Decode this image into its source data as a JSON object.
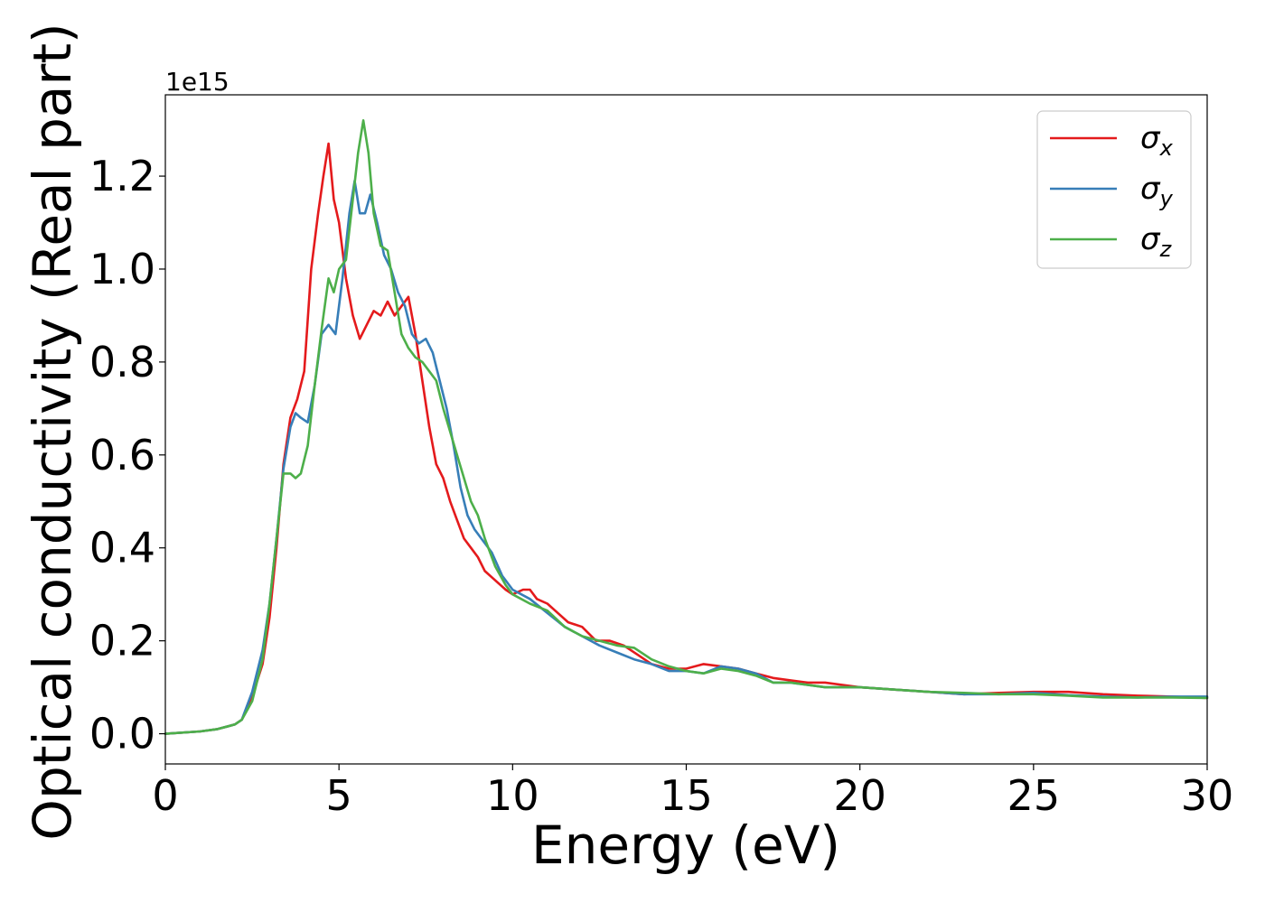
{
  "chart_data": {
    "type": "line",
    "xlabel": "Energy (eV)",
    "ylabel": "Optical conductivity (Real part)",
    "y_offset_label": "1e15",
    "xlim": [
      0,
      30
    ],
    "ylim": [
      -0.065,
      1.375
    ],
    "x_ticks": [
      0,
      5,
      10,
      15,
      20,
      25,
      30
    ],
    "x_tick_labels": [
      "0",
      "5",
      "10",
      "15",
      "20",
      "25",
      "30"
    ],
    "y_ticks": [
      0.0,
      0.2,
      0.4,
      0.6,
      0.8,
      1.0,
      1.2
    ],
    "y_tick_labels": [
      "0.0",
      "0.2",
      "0.4",
      "0.6",
      "0.8",
      "1.0",
      "1.2"
    ],
    "grid": false,
    "legend_position": "top-right",
    "series": [
      {
        "name": "σx",
        "legend_base": "σ",
        "legend_sub": "x",
        "color": "#e41a1c",
        "x": [
          0,
          1,
          1.5,
          2.0,
          2.2,
          2.5,
          2.8,
          3.0,
          3.2,
          3.4,
          3.6,
          3.8,
          4.0,
          4.2,
          4.4,
          4.55,
          4.7,
          4.85,
          5.0,
          5.2,
          5.4,
          5.6,
          5.8,
          6.0,
          6.2,
          6.4,
          6.6,
          6.8,
          7.0,
          7.2,
          7.4,
          7.6,
          7.8,
          8.0,
          8.2,
          8.4,
          8.6,
          8.8,
          9.0,
          9.2,
          9.5,
          9.8,
          10.0,
          10.3,
          10.5,
          10.7,
          11.0,
          11.3,
          11.6,
          12.0,
          12.4,
          12.8,
          13.2,
          13.6,
          14.0,
          14.5,
          15.0,
          15.5,
          16.0,
          16.5,
          17.0,
          17.5,
          18.0,
          18.5,
          19.0,
          19.5,
          20.0,
          21.0,
          22.0,
          23.0,
          24.0,
          25.0,
          26.0,
          27.0,
          28.0,
          29.0,
          30.0
        ],
        "y": [
          0,
          0.005,
          0.01,
          0.02,
          0.03,
          0.08,
          0.15,
          0.25,
          0.4,
          0.58,
          0.68,
          0.72,
          0.78,
          1.0,
          1.12,
          1.2,
          1.27,
          1.15,
          1.1,
          0.98,
          0.9,
          0.85,
          0.88,
          0.91,
          0.9,
          0.93,
          0.9,
          0.92,
          0.94,
          0.86,
          0.76,
          0.66,
          0.58,
          0.55,
          0.5,
          0.46,
          0.42,
          0.4,
          0.38,
          0.35,
          0.33,
          0.31,
          0.3,
          0.31,
          0.31,
          0.29,
          0.28,
          0.26,
          0.24,
          0.23,
          0.2,
          0.2,
          0.19,
          0.17,
          0.15,
          0.14,
          0.14,
          0.15,
          0.145,
          0.14,
          0.13,
          0.12,
          0.115,
          0.11,
          0.11,
          0.105,
          0.1,
          0.095,
          0.09,
          0.085,
          0.088,
          0.09,
          0.09,
          0.085,
          0.082,
          0.08,
          0.077
        ]
      },
      {
        "name": "σy",
        "legend_base": "σ",
        "legend_sub": "y",
        "color": "#377eb8",
        "x": [
          0,
          1,
          1.5,
          2.0,
          2.2,
          2.5,
          2.8,
          3.0,
          3.2,
          3.4,
          3.6,
          3.75,
          3.9,
          4.1,
          4.3,
          4.5,
          4.7,
          4.9,
          5.1,
          5.3,
          5.45,
          5.6,
          5.75,
          5.9,
          6.1,
          6.3,
          6.5,
          6.7,
          6.9,
          7.1,
          7.3,
          7.5,
          7.7,
          7.9,
          8.1,
          8.3,
          8.5,
          8.7,
          8.9,
          9.1,
          9.4,
          9.7,
          10.0,
          10.5,
          11.0,
          11.5,
          12.0,
          12.5,
          13.0,
          13.5,
          14.0,
          14.5,
          15.0,
          15.5,
          16.0,
          16.5,
          17.0,
          17.5,
          18.0,
          18.5,
          19.0,
          20.0,
          21.0,
          22.0,
          23.0,
          24.0,
          25.0,
          26.0,
          27.0,
          28.0,
          29.0,
          30.0
        ],
        "y": [
          0,
          0.005,
          0.01,
          0.02,
          0.03,
          0.09,
          0.18,
          0.28,
          0.42,
          0.57,
          0.66,
          0.69,
          0.68,
          0.67,
          0.75,
          0.86,
          0.88,
          0.86,
          0.98,
          1.12,
          1.19,
          1.12,
          1.12,
          1.16,
          1.1,
          1.03,
          1.0,
          0.95,
          0.92,
          0.86,
          0.84,
          0.85,
          0.82,
          0.76,
          0.7,
          0.62,
          0.53,
          0.47,
          0.44,
          0.42,
          0.39,
          0.34,
          0.31,
          0.29,
          0.26,
          0.23,
          0.21,
          0.19,
          0.175,
          0.16,
          0.15,
          0.135,
          0.135,
          0.13,
          0.145,
          0.14,
          0.13,
          0.11,
          0.11,
          0.105,
          0.1,
          0.1,
          0.095,
          0.09,
          0.085,
          0.085,
          0.088,
          0.083,
          0.08,
          0.078,
          0.08,
          0.08
        ]
      },
      {
        "name": "σz",
        "legend_base": "σ",
        "legend_sub": "z",
        "color": "#4daf4a",
        "x": [
          0,
          1,
          1.5,
          2.0,
          2.2,
          2.5,
          2.8,
          3.0,
          3.2,
          3.4,
          3.6,
          3.75,
          3.9,
          4.1,
          4.3,
          4.5,
          4.7,
          4.85,
          5.0,
          5.2,
          5.4,
          5.55,
          5.7,
          5.85,
          6.0,
          6.2,
          6.4,
          6.6,
          6.8,
          7.0,
          7.2,
          7.4,
          7.6,
          7.8,
          8.0,
          8.2,
          8.4,
          8.6,
          8.8,
          9.0,
          9.2,
          9.5,
          9.8,
          10.0,
          10.5,
          11.0,
          11.5,
          12.0,
          12.5,
          13.0,
          13.5,
          14.0,
          14.5,
          15.0,
          15.5,
          16.0,
          16.5,
          17.0,
          17.5,
          18.0,
          19.0,
          20.0,
          21.0,
          22.0,
          23.0,
          24.0,
          25.0,
          26.0,
          27.0,
          28.0,
          29.0,
          30.0
        ],
        "y": [
          0,
          0.005,
          0.01,
          0.02,
          0.03,
          0.07,
          0.16,
          0.28,
          0.42,
          0.56,
          0.56,
          0.55,
          0.56,
          0.62,
          0.75,
          0.87,
          0.98,
          0.95,
          1.0,
          1.02,
          1.15,
          1.25,
          1.32,
          1.25,
          1.12,
          1.05,
          1.04,
          0.95,
          0.86,
          0.83,
          0.81,
          0.8,
          0.78,
          0.76,
          0.7,
          0.65,
          0.6,
          0.55,
          0.5,
          0.47,
          0.42,
          0.36,
          0.32,
          0.3,
          0.28,
          0.265,
          0.23,
          0.21,
          0.2,
          0.19,
          0.185,
          0.16,
          0.145,
          0.135,
          0.13,
          0.14,
          0.135,
          0.125,
          0.11,
          0.11,
          0.1,
          0.1,
          0.095,
          0.09,
          0.088,
          0.085,
          0.085,
          0.082,
          0.078,
          0.078,
          0.078,
          0.077
        ]
      }
    ]
  }
}
